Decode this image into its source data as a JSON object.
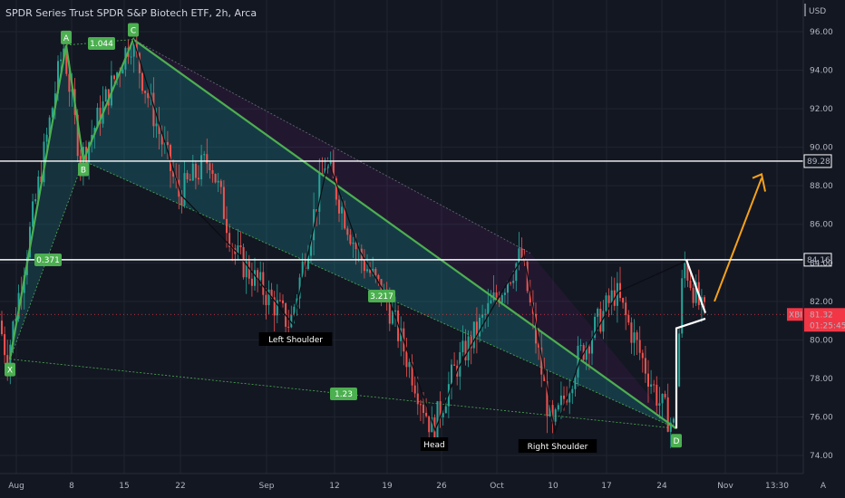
{
  "header": {
    "title": "SPDR Series Trust SPDR S&P Biotech ETF, 2h, Arca",
    "currency": "USD"
  },
  "colors": {
    "background": "#131722",
    "grid": "#1f2430",
    "up": "#26a69a",
    "down": "#ef5350",
    "pattern_green": "#4caf50",
    "level_line": "#ffffff",
    "arrow": "#f7a21b",
    "price_badge": "#f23645"
  },
  "chart_data": {
    "type": "candlestick",
    "x_ticks": [
      "Aug",
      "8",
      "15",
      "22",
      "Sep",
      "12",
      "19",
      "26",
      "Oct",
      "10",
      "17",
      "24",
      "Nov",
      "13:30"
    ],
    "y_ticks": [
      "96.00",
      "94.00",
      "92.00",
      "90.00",
      "88.00",
      "86.00",
      "84.00",
      "82.00",
      "80.00",
      "78.00",
      "76.00",
      "74.00"
    ],
    "ylim": [
      73.5,
      96.5
    ],
    "levels": [
      {
        "value": 89.28,
        "label": "89.28"
      },
      {
        "value": 84.16,
        "label": "84.16"
      }
    ],
    "current_price": {
      "symbol": "XBI",
      "value": "81.32",
      "countdown": "01:25:45"
    },
    "harmonic_points": [
      {
        "name": "X",
        "date": "Jul 28",
        "value": 79.0
      },
      {
        "name": "A",
        "date": "Aug 7",
        "value": 95.3
      },
      {
        "name": "B",
        "date": "Aug 9",
        "value": 89.3
      },
      {
        "name": "C",
        "date": "Aug 16",
        "value": 95.6
      },
      {
        "name": "D",
        "date": "Oct 26",
        "value": 75.4
      }
    ],
    "ratios": [
      "1.044",
      "0.371",
      "3.217",
      "1.23"
    ],
    "head_and_shoulders": [
      {
        "name": "Left Shoulder",
        "date": "Sep 5",
        "value": 80.8
      },
      {
        "name": "Head",
        "date": "Sep 26",
        "value": 75.3
      },
      {
        "name": "Right Shoulder",
        "date": "Oct 10",
        "value": 75.2
      }
    ],
    "projection": "up toward 89.28"
  }
}
